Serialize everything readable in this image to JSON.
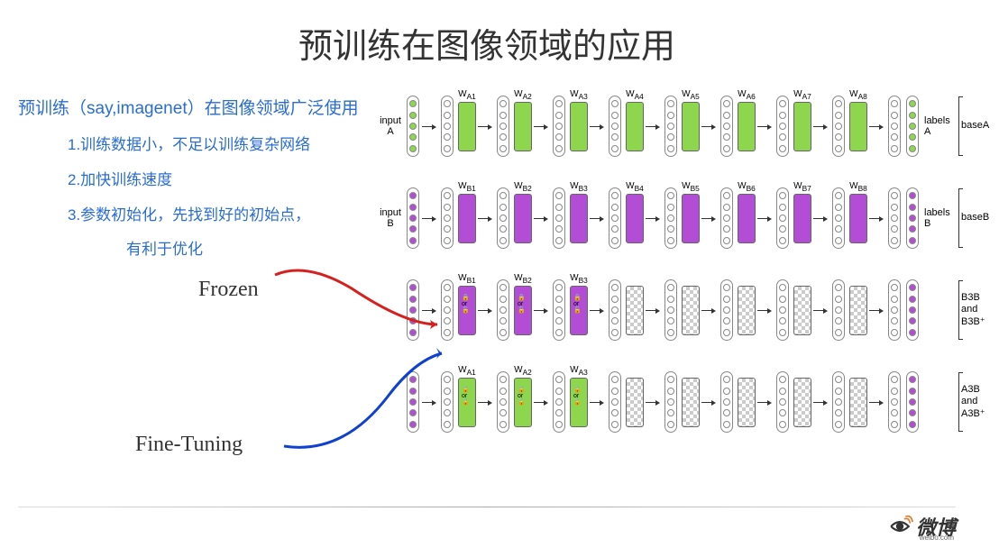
{
  "title": "预训练在图像领域的应用",
  "subtitle": "预训练（say,imagenet）在图像领域广泛使用",
  "bullets": {
    "b1": "1.训练数据小，不足以训练复杂网络",
    "b2": "2.加快训练速度",
    "b3": "3.参数初始化，先找到好的初始点，",
    "b3sub": "有利于优化"
  },
  "labels": {
    "frozen": "Frozen",
    "finetuning": "Fine-Tuning"
  },
  "diagram": {
    "colors": {
      "green": "#8fd64f",
      "purple": "#b34dd6",
      "checker_light": "#ffffff",
      "checker_dark": "#cccccc",
      "border": "#666666"
    },
    "rows": [
      {
        "id": "A",
        "input_label": "input\nA",
        "output_label": "labels\nA",
        "side_label": "baseA",
        "io_color": "green",
        "blocks": [
          {
            "label": "W_A1",
            "type": "green"
          },
          {
            "label": "W_A2",
            "type": "green"
          },
          {
            "label": "W_A3",
            "type": "green"
          },
          {
            "label": "W_A4",
            "type": "green"
          },
          {
            "label": "W_A5",
            "type": "green"
          },
          {
            "label": "W_A6",
            "type": "green"
          },
          {
            "label": "W_A7",
            "type": "green"
          },
          {
            "label": "W_A8",
            "type": "green"
          }
        ]
      },
      {
        "id": "B",
        "input_label": "input\nB",
        "output_label": "labels\nB",
        "side_label": "baseB",
        "io_color": "purple",
        "blocks": [
          {
            "label": "W_B1",
            "type": "purple"
          },
          {
            "label": "W_B2",
            "type": "purple"
          },
          {
            "label": "W_B3",
            "type": "purple"
          },
          {
            "label": "W_B4",
            "type": "purple"
          },
          {
            "label": "W_B5",
            "type": "purple"
          },
          {
            "label": "W_B6",
            "type": "purple"
          },
          {
            "label": "W_B7",
            "type": "purple"
          },
          {
            "label": "W_B8",
            "type": "purple"
          }
        ]
      },
      {
        "id": "B3B",
        "input_label": "",
        "output_label": "",
        "side_label": "B3B\nand\nB3B⁺",
        "io_color": "purple",
        "blocks": [
          {
            "label": "W_B1",
            "type": "purple",
            "lock": true
          },
          {
            "label": "W_B2",
            "type": "purple",
            "lock": true
          },
          {
            "label": "W_B3",
            "type": "purple",
            "lock": true
          },
          {
            "label": "",
            "type": "check"
          },
          {
            "label": "",
            "type": "check"
          },
          {
            "label": "",
            "type": "check"
          },
          {
            "label": "",
            "type": "check"
          },
          {
            "label": "",
            "type": "check"
          }
        ]
      },
      {
        "id": "A3B",
        "input_label": "",
        "output_label": "",
        "side_label": "A3B\nand\nA3B⁺",
        "io_color": "purple",
        "first_blocks_green": true,
        "blocks": [
          {
            "label": "W_A1",
            "type": "green",
            "lock": true
          },
          {
            "label": "W_A2",
            "type": "green",
            "lock": true
          },
          {
            "label": "W_A3",
            "type": "green",
            "lock": true
          },
          {
            "label": "",
            "type": "check"
          },
          {
            "label": "",
            "type": "check"
          },
          {
            "label": "",
            "type": "check"
          },
          {
            "label": "",
            "type": "check"
          },
          {
            "label": "",
            "type": "check"
          }
        ]
      }
    ],
    "arrows": {
      "frozen_color": "#d62020",
      "finetune_color": "#1040d0"
    }
  },
  "footer": {
    "brand": "微博",
    "brand_sub": "weibo.com",
    "eye_color": "#e6792a"
  }
}
